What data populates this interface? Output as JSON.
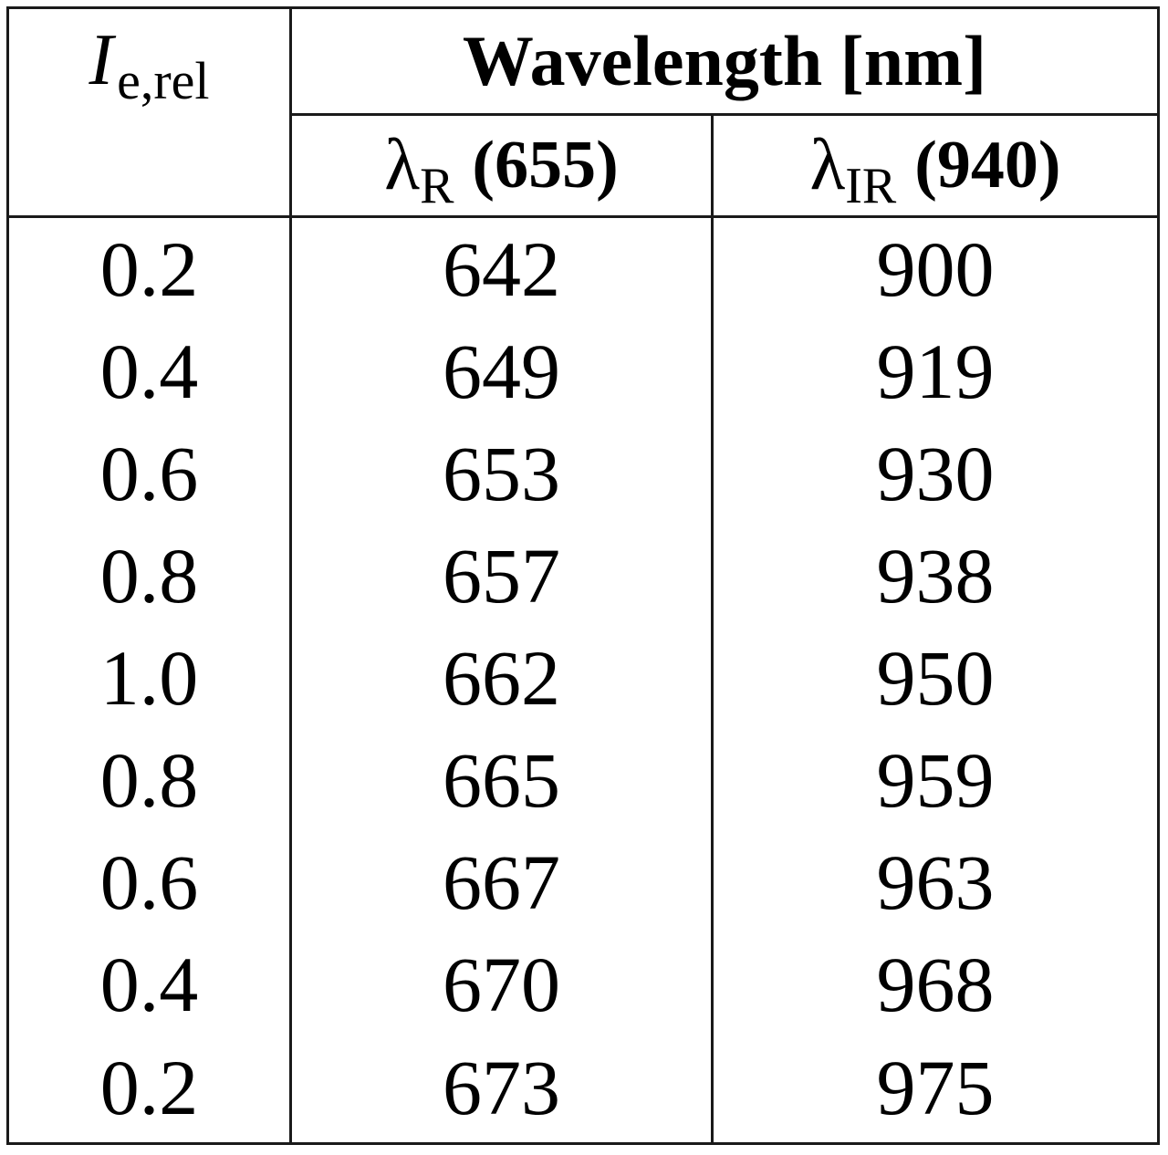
{
  "table": {
    "row_header": {
      "symbol": "I",
      "subscript": "e,rel"
    },
    "group_header": "Wavelength [nm]",
    "columns": [
      {
        "symbol": "λ",
        "subscript": "R",
        "nominal": "(655)"
      },
      {
        "symbol": "λ",
        "subscript": "IR",
        "nominal": "(940)"
      }
    ],
    "rows": [
      {
        "ie": "0.2",
        "red": "642",
        "ir": "900"
      },
      {
        "ie": "0.4",
        "red": "649",
        "ir": "919"
      },
      {
        "ie": "0.6",
        "red": "653",
        "ir": "930"
      },
      {
        "ie": "0.8",
        "red": "657",
        "ir": "938"
      },
      {
        "ie": "1.0",
        "red": "662",
        "ir": "950"
      },
      {
        "ie": "0.8",
        "red": "665",
        "ir": "959"
      },
      {
        "ie": "0.6",
        "red": "667",
        "ir": "963"
      },
      {
        "ie": "0.4",
        "red": "670",
        "ir": "968"
      },
      {
        "ie": "0.2",
        "red": "673",
        "ir": "975"
      }
    ]
  }
}
